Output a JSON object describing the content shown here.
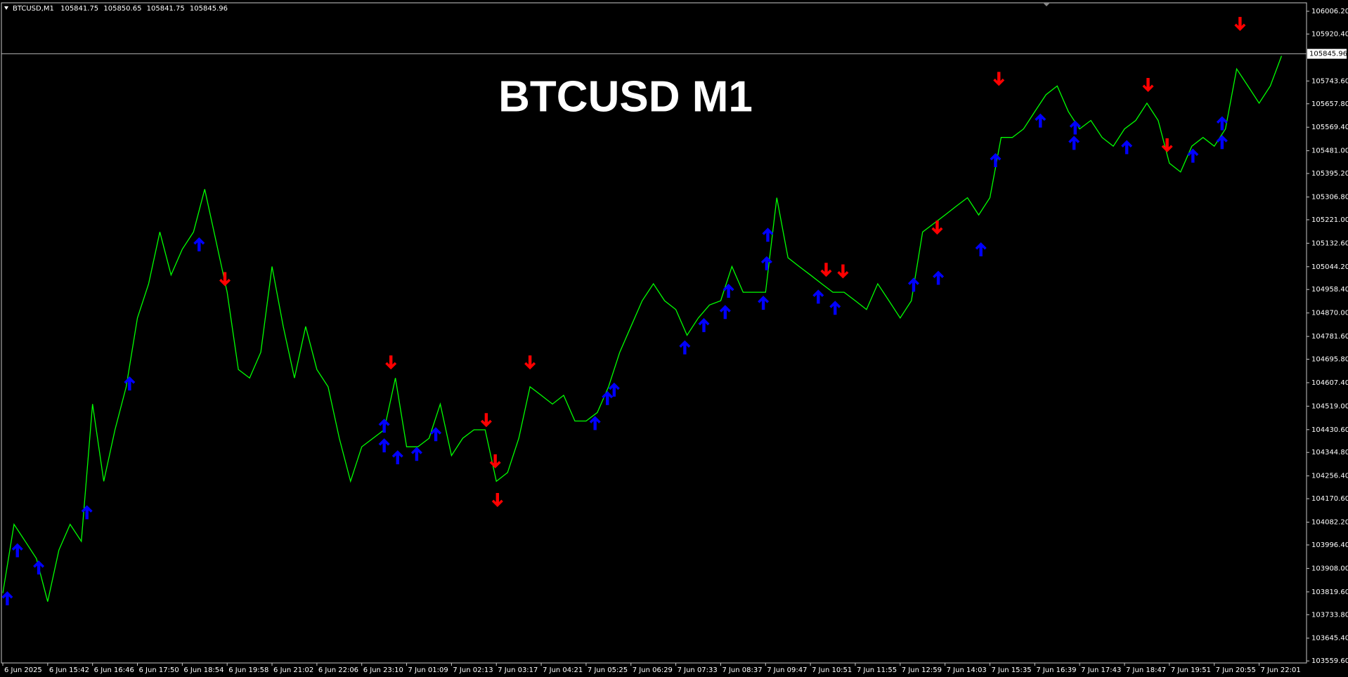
{
  "chart_data": {
    "type": "line",
    "title": "BTCUSD M1",
    "header": {
      "symbol": "BTCUSD,M1",
      "ohlc": [
        105841.75,
        105850.65,
        105841.75,
        105845.96
      ]
    },
    "categories": [
      "6 Jun 2025",
      null,
      null,
      null,
      "6 Jun 15:42",
      null,
      null,
      null,
      "6 Jun 16:46",
      null,
      null,
      null,
      "6 Jun 17:50",
      null,
      null,
      null,
      "6 Jun 18:54",
      null,
      null,
      null,
      "6 Jun 19:58",
      null,
      null,
      null,
      "6 Jun 21:02",
      null,
      null,
      null,
      "6 Jun 22:06",
      null,
      null,
      null,
      "6 Jun 23:10",
      null,
      null,
      null,
      "7 Jun 01:09",
      null,
      null,
      null,
      "7 Jun 02:13",
      null,
      null,
      null,
      "7 Jun 03:17",
      null,
      null,
      null,
      "7 Jun 04:21",
      null,
      null,
      null,
      "7 Jun 05:25",
      null,
      null,
      null,
      "7 Jun 06:29",
      null,
      null,
      null,
      "7 Jun 07:33",
      null,
      null,
      null,
      "7 Jun 08:37",
      null,
      null,
      null,
      "7 Jun 09:47",
      null,
      null,
      null,
      "7 Jun 10:51",
      null,
      null,
      null,
      "7 Jun 11:55",
      null,
      null,
      null,
      "7 Jun 12:59",
      null,
      null,
      null,
      "7 Jun 14:03",
      null,
      null,
      null,
      "7 Jun 15:35",
      null,
      null,
      null,
      "7 Jun 16:39",
      null,
      null,
      null,
      "7 Jun 17:43",
      null,
      null,
      null,
      "7 Jun 18:47",
      null,
      null,
      null,
      "7 Jun 19:51",
      null,
      null,
      null,
      "7 Jun 20:55",
      null,
      null,
      null,
      "7 Jun 22:01",
      null,
      null
    ],
    "series": [
      {
        "color": "#00ff00",
        "values": [
          103815,
          104074,
          104010,
          103945,
          103783,
          103977,
          104074,
          104010,
          104527,
          104236,
          104430,
          104592,
          104851,
          104980,
          105175,
          105013,
          105110,
          105175,
          105336,
          105142,
          104948,
          104657,
          104625,
          104722,
          105045,
          104819,
          104625,
          104819,
          104657,
          104592,
          104398,
          104236,
          104366,
          104398,
          104430,
          104625,
          104366,
          104366,
          104398,
          104527,
          104333,
          104398,
          104430,
          104430,
          104236,
          104269,
          104398,
          104592,
          104560,
          104527,
          104560,
          104463,
          104463,
          104495,
          104592,
          104722,
          104819,
          104916,
          104980,
          104916,
          104883,
          104786,
          104851,
          104900,
          104916,
          105045,
          104948,
          104948,
          104948,
          105304,
          105078,
          105045,
          105013,
          104980,
          104948,
          104948,
          104916,
          104883,
          104980,
          104916,
          104851,
          104916,
          105175,
          105207,
          105239,
          105272,
          105304,
          105239,
          105304,
          105531,
          105531,
          105563,
          105628,
          105692,
          105725,
          105628,
          105563,
          105595,
          105531,
          105498,
          105563,
          105595,
          105660,
          105595,
          105434,
          105401,
          105498,
          105531,
          105498,
          105563,
          105789,
          105725,
          105660,
          105725,
          105838
        ]
      }
    ],
    "arrows_up": {
      "color": "#0000ff",
      "x": [
        0.4,
        1.3,
        3.2,
        7.5,
        11.3,
        17.5,
        34.0,
        34.0,
        35.2,
        36.9,
        38.6,
        52.8,
        53.9,
        54.5,
        60.8,
        62.5,
        64.4,
        64.7,
        67.8,
        68.1,
        68.2,
        72.7,
        74.2,
        81.2,
        83.4,
        87.2,
        88.5,
        92.5,
        95.5,
        95.6,
        100.2,
        106.1,
        108.7,
        108.7
      ],
      "values": [
        103822,
        104003,
        103938,
        104146,
        104631,
        105155,
        104472,
        104398,
        104353,
        104366,
        104440,
        104482,
        104576,
        104608,
        104767,
        104851,
        104900,
        104980,
        104935,
        105084,
        105191,
        104958,
        104916,
        105003,
        105029,
        105136,
        105472,
        105621,
        105537,
        105595,
        105521,
        105489,
        105540,
        105611
      ]
    },
    "arrows_down": {
      "color": "#ff0000",
      "x": [
        19.8,
        34.6,
        43.1,
        43.9,
        44.1,
        47.0,
        73.4,
        74.9,
        83.3,
        88.8,
        102.1,
        103.8,
        110.3
      ],
      "values": [
        104971,
        104657,
        104440,
        104285,
        104139,
        104657,
        105006,
        105000,
        105165,
        105725,
        105702,
        105475,
        105932
      ]
    },
    "current_price": 105845.96,
    "ylim": [
      103552,
      106038
    ],
    "yticks": [
      {
        "value": 106006.2,
        "label": "106006.20"
      },
      {
        "value": 105920.4,
        "label": "105920.40"
      },
      {
        "value": 105743.6,
        "label": "105743.60"
      },
      {
        "value": 105657.8,
        "label": "105657.80"
      },
      {
        "value": 105569.4,
        "label": "105569.40"
      },
      {
        "value": 105481,
        "label": "105481.00"
      },
      {
        "value": 105395.2,
        "label": "105395.20"
      },
      {
        "value": 105306.8,
        "label": "105306.80"
      },
      {
        "value": 105221,
        "label": "105221.00"
      },
      {
        "value": 105132.6,
        "label": "105132.60"
      },
      {
        "value": 105044.2,
        "label": "105044.20"
      },
      {
        "value": 104958.4,
        "label": "104958.40"
      },
      {
        "value": 104870,
        "label": "104870.00"
      },
      {
        "value": 104781.6,
        "label": "104781.60"
      },
      {
        "value": 104695.8,
        "label": "104695.80"
      },
      {
        "value": 104607.4,
        "label": "104607.40"
      },
      {
        "value": 104519,
        "label": "104519.00"
      },
      {
        "value": 104430.6,
        "label": "104430.60"
      },
      {
        "value": 104344.8,
        "label": "104344.80"
      },
      {
        "value": 104256.4,
        "label": "104256.40"
      },
      {
        "value": 104170.6,
        "label": "104170.60"
      },
      {
        "value": 104082.2,
        "label": "104082.20"
      },
      {
        "value": 103996.4,
        "label": "103996.40"
      },
      {
        "value": 103908,
        "label": "103908.00"
      },
      {
        "value": 103819.6,
        "label": "103819.60"
      },
      {
        "value": 103733.8,
        "label": "103733.80"
      },
      {
        "value": 103645.4,
        "label": "103645.40"
      },
      {
        "value": 103559.6,
        "label": "103559.60"
      }
    ]
  }
}
